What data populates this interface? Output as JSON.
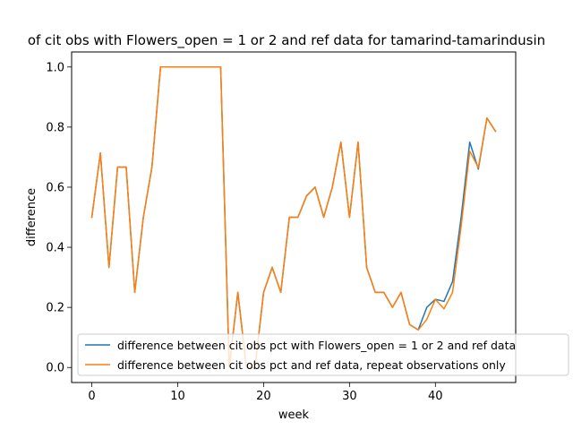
{
  "chart_data": {
    "type": "line",
    "title": "of cit obs with Flowers_open = 1 or 2 and ref data for tamarind-tamarindusin",
    "xlabel": "week",
    "ylabel": "difference",
    "xlim": [
      -2.35,
      49.35
    ],
    "ylim": [
      -0.05,
      1.05
    ],
    "xticks": [
      0,
      10,
      20,
      30,
      40
    ],
    "yticks": [
      0.0,
      0.2,
      0.4,
      0.6,
      0.8,
      1.0
    ],
    "xtick_labels": [
      "0",
      "10",
      "20",
      "30",
      "40"
    ],
    "ytick_labels": [
      "0.0",
      "0.2",
      "0.4",
      "0.6",
      "0.8",
      "1.0"
    ],
    "grid": false,
    "legend_position": "lower-right",
    "series": [
      {
        "name": "difference between cit obs pct with Flowers_open = 1 or 2 and ref data",
        "color": "#1f77b4",
        "x": [
          0,
          1,
          2,
          3,
          4,
          5,
          6,
          7,
          8,
          9,
          10,
          11,
          12,
          13,
          14,
          15,
          16,
          17,
          18,
          19,
          20,
          21,
          22,
          23,
          24,
          25,
          26,
          27,
          28,
          29,
          30,
          31,
          32,
          33,
          34,
          35,
          36,
          37,
          38,
          39,
          40,
          41,
          42,
          43,
          44,
          45,
          46,
          47
        ],
        "y": [
          0.5,
          0.714,
          0.333,
          0.667,
          0.667,
          0.25,
          0.5,
          0.667,
          1.0,
          1.0,
          1.0,
          1.0,
          1.0,
          1.0,
          1.0,
          1.0,
          0.0,
          0.25,
          0.0,
          0.0,
          0.25,
          0.333,
          0.25,
          0.5,
          0.5,
          0.571,
          0.6,
          0.5,
          0.6,
          0.75,
          0.5,
          0.75,
          0.333,
          0.25,
          0.25,
          0.2,
          0.25,
          0.143,
          0.125,
          0.2,
          0.227,
          0.22,
          0.286,
          0.5,
          0.75,
          0.66,
          0.83,
          0.786
        ]
      },
      {
        "name": "difference between cit obs pct and ref data, repeat observations only",
        "color": "#ff7f0e",
        "x": [
          0,
          1,
          2,
          3,
          4,
          5,
          6,
          7,
          8,
          9,
          10,
          11,
          12,
          13,
          14,
          15,
          16,
          17,
          18,
          19,
          20,
          21,
          22,
          23,
          24,
          25,
          26,
          27,
          28,
          29,
          30,
          31,
          32,
          33,
          34,
          35,
          36,
          37,
          38,
          39,
          40,
          41,
          42,
          43,
          44,
          45,
          46,
          47
        ],
        "y": [
          0.5,
          0.714,
          0.333,
          0.667,
          0.667,
          0.25,
          0.5,
          0.667,
          1.0,
          1.0,
          1.0,
          1.0,
          1.0,
          1.0,
          1.0,
          1.0,
          0.0,
          0.25,
          0.0,
          0.0,
          0.25,
          0.333,
          0.25,
          0.5,
          0.5,
          0.571,
          0.6,
          0.5,
          0.6,
          0.75,
          0.5,
          0.75,
          0.333,
          0.25,
          0.25,
          0.2,
          0.25,
          0.143,
          0.125,
          0.16,
          0.227,
          0.195,
          0.25,
          0.47,
          0.72,
          0.665,
          0.83,
          0.786
        ]
      }
    ]
  }
}
